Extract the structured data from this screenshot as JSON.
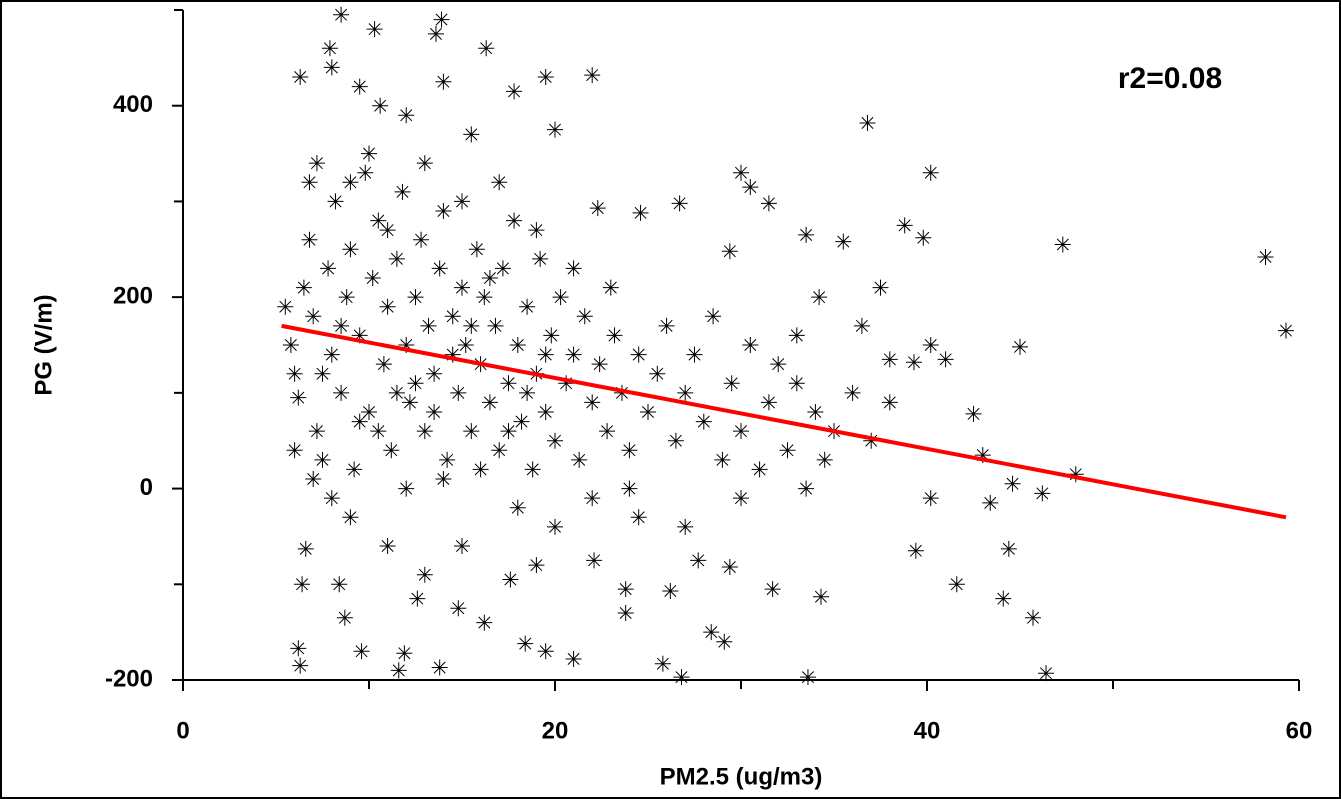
{
  "chart_data": {
    "type": "scatter",
    "annotation": "r2=0.08",
    "x_label": "PM2.5 (ug/m3)",
    "y_label": "PG (V/m)",
    "xlim": [
      0,
      60
    ],
    "xticks": [
      0,
      20,
      40,
      60
    ],
    "xminor_ticks": [
      10,
      30,
      50
    ],
    "ylim": [
      -200,
      500
    ],
    "yticks": [
      -200,
      0,
      200,
      400
    ],
    "yminor_ticks": [
      -100,
      100,
      300,
      500
    ],
    "series": [
      {
        "type": "scatter",
        "marker": "asterisk",
        "color": "#000000",
        "x": [
          8.5,
          13.9,
          10.3,
          13.6,
          16.3,
          7.9,
          8,
          6.3,
          22,
          19.5,
          14,
          9.5,
          17.8,
          36.8,
          20,
          40.2,
          30,
          30.5,
          31.5,
          26.7,
          22.3,
          24.6,
          38.8,
          33.5,
          39.8,
          47.3,
          35.5,
          58.2,
          29.4,
          59.3,
          45,
          40.2,
          41,
          38,
          39.3,
          42.5,
          48,
          43,
          44.6,
          46.2,
          43.4,
          40.2,
          39.4,
          41.6,
          44.4,
          44.1,
          45.7,
          46.4,
          33.6,
          26.8,
          25.8,
          21,
          13.8,
          11.6,
          6.3,
          6.2,
          9.6,
          11.9,
          18.4,
          19.5,
          29.1,
          28.4,
          34.3,
          31.7,
          23.8,
          23.8,
          26.2,
          17.6,
          16.2,
          14.8,
          12.6,
          8.7,
          8.4,
          6.6,
          6.4,
          22.1,
          27.7,
          29.4,
          5.5,
          5.8,
          6,
          6.2,
          6.5,
          6.8,
          7,
          7.2,
          7.5,
          7.8,
          8,
          8.2,
          8.5,
          8.8,
          9,
          9.2,
          9.5,
          9.8,
          10,
          10.2,
          10.5,
          10.8,
          11,
          11.2,
          11.5,
          11.8,
          12,
          12.2,
          12.5,
          12.8,
          13,
          13.2,
          13.5,
          13.8,
          14,
          14.2,
          14.5,
          14.8,
          15,
          15.2,
          15.5,
          15.8,
          16,
          16.2,
          16.5,
          16.8,
          17,
          17.2,
          17.5,
          17.8,
          18,
          18.2,
          18.5,
          18.8,
          19,
          19.2,
          19.5,
          19.8,
          20,
          20.3,
          20.6,
          21,
          21.3,
          21.6,
          22,
          22.4,
          22.8,
          23.2,
          23.6,
          24,
          24.5,
          25,
          25.5,
          26,
          26.5,
          27,
          27.5,
          28,
          28.5,
          29,
          29.5,
          30,
          30.5,
          31,
          31.5,
          32,
          32.5,
          33,
          33.5,
          34,
          34.5,
          35,
          36,
          37,
          38,
          36.5,
          37.5,
          34.2,
          33,
          6,
          7,
          8,
          9,
          10,
          11,
          12,
          13,
          14,
          15,
          16,
          17,
          18,
          19,
          20,
          21,
          22,
          23,
          24,
          10.5,
          12.5,
          14.5,
          16.5,
          18.5,
          9.5,
          11.5,
          13.5,
          15.5,
          17.5,
          19.5,
          7.5,
          8.5,
          6.8,
          7.2,
          10.6,
          12,
          15.5,
          11,
          13,
          15,
          9,
          19,
          24.5,
          27,
          30
        ],
        "values": [
          495,
          490,
          480,
          475,
          460,
          460,
          440,
          430,
          432,
          430,
          425,
          420,
          415,
          382,
          375,
          330,
          330,
          315,
          298,
          298,
          293,
          288,
          275,
          265,
          262,
          255,
          258,
          242,
          248,
          165,
          148,
          150,
          135,
          135,
          132,
          78,
          15,
          35,
          5,
          -5,
          -15,
          -10,
          -65,
          -100,
          -63,
          -115,
          -135,
          -193,
          -197,
          -197,
          -183,
          -178,
          -187,
          -190,
          -185,
          -167,
          -170,
          -172,
          -162,
          -170,
          -160,
          -150,
          -113,
          -105,
          -105,
          -130,
          -107,
          -95,
          -140,
          -125,
          -115,
          -135,
          -100,
          -63,
          -100,
          -75,
          -75,
          -82,
          190,
          150,
          120,
          95,
          210,
          260,
          180,
          60,
          30,
          230,
          140,
          300,
          100,
          200,
          250,
          20,
          160,
          330,
          80,
          220,
          280,
          130,
          190,
          40,
          240,
          310,
          150,
          90,
          200,
          260,
          60,
          170,
          120,
          230,
          290,
          30,
          180,
          100,
          210,
          150,
          60,
          250,
          130,
          200,
          90,
          170,
          40,
          230,
          110,
          280,
          150,
          70,
          190,
          20,
          120,
          240,
          80,
          160,
          50,
          200,
          110,
          140,
          30,
          180,
          90,
          130,
          60,
          160,
          100,
          40,
          140,
          80,
          120,
          170,
          50,
          100,
          140,
          70,
          180,
          30,
          110,
          60,
          150,
          20,
          90,
          130,
          40,
          110,
          0,
          80,
          30,
          60,
          100,
          50,
          90,
          170,
          210,
          200,
          160,
          40,
          10,
          -10,
          320,
          350,
          270,
          0,
          340,
          10,
          300,
          20,
          320,
          -20,
          270,
          -40,
          230,
          -10,
          210,
          0,
          60,
          110,
          140,
          220,
          100,
          70,
          100,
          80,
          170,
          60,
          140,
          120,
          170,
          320,
          340,
          400,
          390,
          370,
          -60,
          -90,
          -60,
          -30,
          -80,
          -30,
          -40,
          -10
        ]
      },
      {
        "type": "line",
        "color": "#ff0000",
        "x": [
          5.3,
          59.3
        ],
        "values": [
          170,
          -30
        ]
      }
    ]
  }
}
